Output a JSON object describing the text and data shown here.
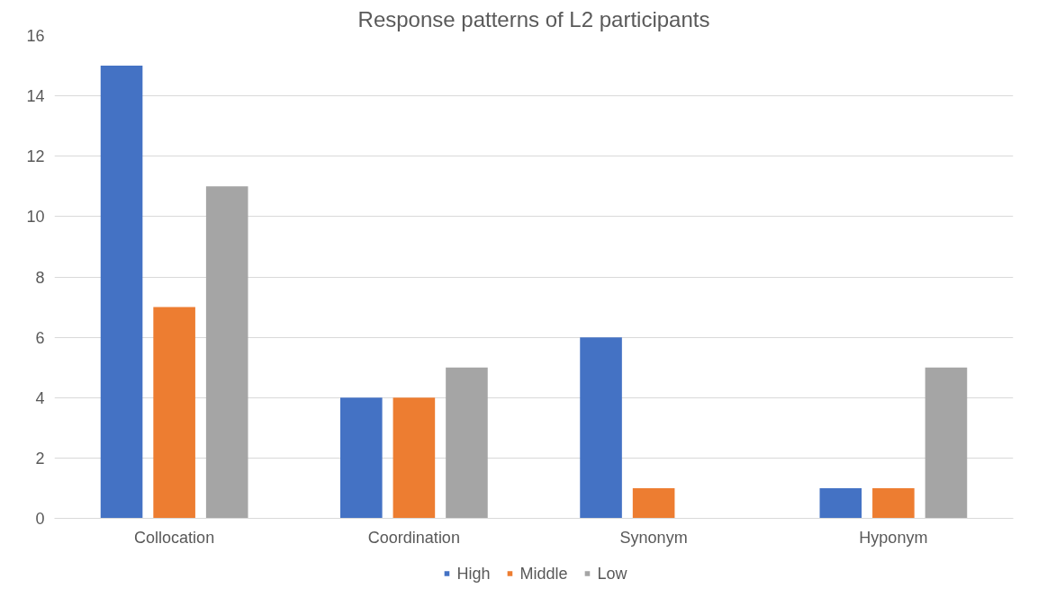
{
  "chart_data": {
    "type": "bar",
    "title": "Response patterns of L2 participants",
    "categories": [
      "Collocation",
      "Coordination",
      "Synonym",
      "Hyponym"
    ],
    "series": [
      {
        "name": "High",
        "color": "#4472c4",
        "values": [
          15,
          4,
          6,
          1
        ]
      },
      {
        "name": "Middle",
        "color": "#ed7d31",
        "values": [
          7,
          4,
          1,
          1
        ]
      },
      {
        "name": "Low",
        "color": "#a5a5a5",
        "values": [
          11,
          5,
          0,
          5
        ]
      }
    ],
    "ylim": [
      0,
      16
    ],
    "yticks": [
      0,
      2,
      4,
      6,
      8,
      10,
      12,
      14,
      16
    ],
    "grid": "y",
    "legend": "bottom"
  }
}
